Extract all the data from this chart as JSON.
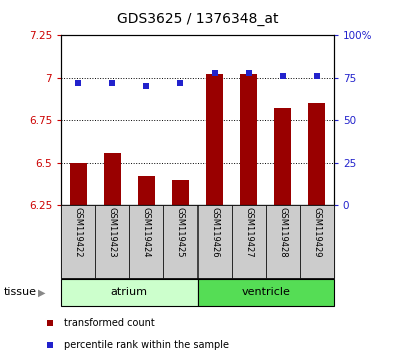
{
  "title": "GDS3625 / 1376348_at",
  "samples": [
    "GSM119422",
    "GSM119423",
    "GSM119424",
    "GSM119425",
    "GSM119426",
    "GSM119427",
    "GSM119428",
    "GSM119429"
  ],
  "bar_values": [
    6.5,
    6.56,
    6.42,
    6.4,
    7.02,
    7.02,
    6.82,
    6.85
  ],
  "dot_values": [
    72,
    72,
    70,
    72,
    78,
    78,
    76,
    76
  ],
  "ylim_left": [
    6.25,
    7.25
  ],
  "ylim_right": [
    0,
    100
  ],
  "yticks_left": [
    6.25,
    6.5,
    6.75,
    7.0,
    7.25
  ],
  "yticks_right": [
    0,
    25,
    50,
    75,
    100
  ],
  "ytick_labels_left": [
    "6.25",
    "6.5",
    "6.75",
    "7",
    "7.25"
  ],
  "ytick_labels_right": [
    "0",
    "25",
    "50",
    "75",
    "100%"
  ],
  "bar_color": "#990000",
  "dot_color": "#2222cc",
  "groups": [
    {
      "label": "atrium",
      "start": 0,
      "end": 4,
      "color": "#ccffcc"
    },
    {
      "label": "ventricle",
      "start": 4,
      "end": 8,
      "color": "#55dd55"
    }
  ],
  "sample_bg": "#cccccc",
  "tissue_label": "tissue",
  "legend_items": [
    {
      "label": "transformed count",
      "color": "#990000"
    },
    {
      "label": "percentile rank within the sample",
      "color": "#2222cc"
    }
  ],
  "bar_width": 0.5,
  "base_value": 6.25
}
